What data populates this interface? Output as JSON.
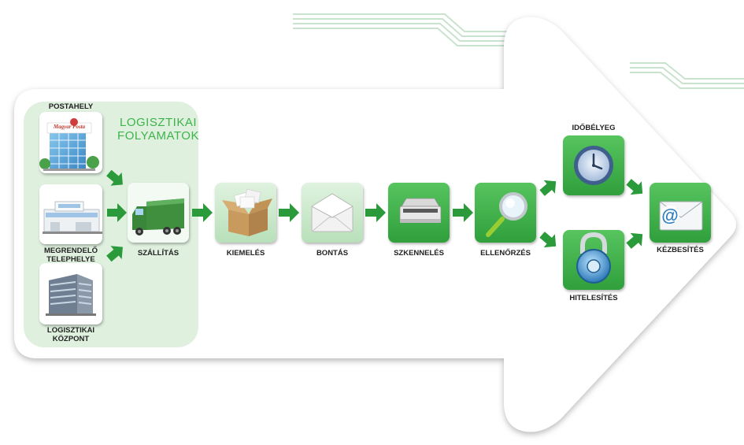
{
  "group_title": [
    "LOGISZTIKAI",
    "FOLYAMATOK"
  ],
  "sources": {
    "postahely": "POSTAHELY",
    "brand": "Magyar Posta",
    "megrendelo": [
      "MEGRENDELŐ",
      "TELEPHELYE"
    ],
    "kozpont": [
      "LOGISZTIKAI",
      "KÖZPONT"
    ]
  },
  "steps": {
    "szallitas": "SZÁLLÍTÁS",
    "kiemeles": "KIEMELÉS",
    "bontas": "BONTÁS",
    "szkenneles": "SZKENNELÉS",
    "ellenorzes": "ELLENŐRZÉS",
    "idobelyeg": "IDŐBÉLYEG",
    "hitelesites": "HITELESÍTÉS",
    "kezbesites": "KÉZBESÍTÉS"
  },
  "colors": {
    "green": "#3cb44a",
    "dark_green": "#1e8a33",
    "panel": "#dff0df",
    "tile_light": "#c9e9c9"
  },
  "icons": [
    "post-office-icon",
    "factory-icon",
    "office-building-icon",
    "truck-icon",
    "open-box-icon",
    "envelope-icon",
    "scanner-icon",
    "magnifier-icon",
    "clock-icon",
    "padlock-icon",
    "email-icon"
  ]
}
